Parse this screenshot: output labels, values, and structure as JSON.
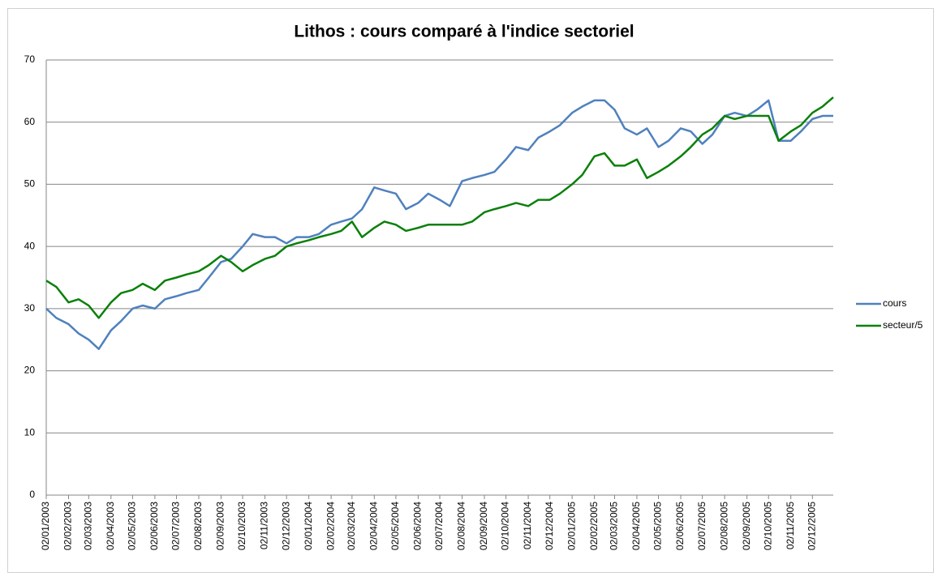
{
  "chart_data": {
    "type": "line",
    "title": "Lithos : cours comparé à l'indice sectoriel",
    "x": [
      "02/01/2003",
      "16/01/2003",
      "02/02/2003",
      "16/02/2003",
      "02/03/2003",
      "16/03/2003",
      "02/04/2003",
      "16/04/2003",
      "02/05/2003",
      "16/05/2003",
      "02/06/2003",
      "16/06/2003",
      "02/07/2003",
      "16/07/2003",
      "02/08/2003",
      "16/08/2003",
      "02/09/2003",
      "16/09/2003",
      "02/10/2003",
      "16/10/2003",
      "02/11/2003",
      "16/11/2003",
      "02/12/2003",
      "16/12/2003",
      "02/01/2004",
      "16/01/2004",
      "02/02/2004",
      "16/02/2004",
      "02/03/2004",
      "16/03/2004",
      "02/04/2004",
      "16/04/2004",
      "02/05/2004",
      "16/05/2004",
      "02/06/2004",
      "16/06/2004",
      "02/07/2004",
      "16/07/2004",
      "02/08/2004",
      "16/08/2004",
      "02/09/2004",
      "16/09/2004",
      "02/10/2004",
      "16/10/2004",
      "02/11/2004",
      "16/11/2004",
      "02/12/2004",
      "16/12/2004",
      "02/01/2005",
      "16/01/2005",
      "02/02/2005",
      "16/02/2005",
      "02/03/2005",
      "16/03/2005",
      "02/04/2005",
      "16/04/2005",
      "02/05/2005",
      "16/05/2005",
      "02/06/2005",
      "16/06/2005",
      "02/07/2005",
      "16/07/2005",
      "02/08/2005",
      "16/08/2005",
      "02/09/2005",
      "16/09/2005",
      "02/10/2005",
      "16/10/2005",
      "02/11/2005",
      "16/11/2005",
      "02/12/2005",
      "16/12/2005",
      "31/12/2005"
    ],
    "series": [
      {
        "name": "cours",
        "color": "#4f81bd",
        "values": [
          30,
          28.5,
          27.5,
          26,
          25,
          23.5,
          26.5,
          28,
          30,
          30.5,
          30,
          31.5,
          32,
          32.5,
          33,
          35,
          37.5,
          38,
          40,
          42,
          41.5,
          41.5,
          40.5,
          41.5,
          41.5,
          42,
          43.5,
          44,
          44.5,
          46,
          49.5,
          49,
          48.5,
          46,
          47,
          48.5,
          47.5,
          46.5,
          50.5,
          51,
          51.5,
          52,
          54,
          56,
          55.5,
          57.5,
          58.5,
          59.5,
          61.5,
          62.5,
          63.5,
          63.5,
          62,
          59,
          58,
          59,
          56,
          57,
          59,
          58.5,
          56.5,
          58,
          61,
          61.5,
          61,
          62,
          63.5,
          57,
          57,
          58.5,
          60.5,
          61,
          61
        ]
      },
      {
        "name": "secteur/5",
        "color": "#0a800a",
        "values": [
          34.5,
          33.5,
          31,
          31.5,
          30.5,
          28.5,
          31,
          32.5,
          33,
          34,
          33,
          34.5,
          35,
          35.5,
          36,
          37,
          38.5,
          37.5,
          36,
          37,
          38,
          38.5,
          40,
          40.5,
          41,
          41.5,
          42,
          42.5,
          44,
          41.5,
          43,
          44,
          43.5,
          42.5,
          43,
          43.5,
          43.5,
          43.5,
          43.5,
          44,
          45.5,
          46,
          46.5,
          47,
          46.5,
          47.5,
          47.5,
          48.5,
          50,
          51.5,
          54.5,
          55,
          53,
          53,
          54,
          51,
          52,
          53,
          54.5,
          56,
          58,
          59,
          61,
          60.5,
          61,
          61,
          61,
          57,
          58.5,
          59.5,
          61.5,
          62.5,
          64
        ]
      }
    ],
    "xlim": [
      "02/01/2003",
      "31/12/2005"
    ],
    "xticks": [
      "02/01/2003",
      "02/02/2003",
      "02/03/2003",
      "02/04/2003",
      "02/05/2003",
      "02/06/2003",
      "02/07/2003",
      "02/08/2003",
      "02/09/2003",
      "02/10/2003",
      "02/11/2003",
      "02/12/2003",
      "02/01/2004",
      "02/02/2004",
      "02/03/2004",
      "02/04/2004",
      "02/05/2004",
      "02/06/2004",
      "02/07/2004",
      "02/08/2004",
      "02/09/2004",
      "02/10/2004",
      "02/11/2004",
      "02/12/2004",
      "02/01/2005",
      "02/02/2005",
      "02/03/2005",
      "02/04/2005",
      "02/05/2005",
      "02/06/2005",
      "02/07/2005",
      "02/08/2005",
      "02/09/2005",
      "02/10/2005",
      "02/11/2005",
      "02/12/2005"
    ],
    "ylim": [
      0,
      70
    ],
    "yticks": [
      0,
      10,
      20,
      30,
      40,
      50,
      60,
      70
    ],
    "grid": true,
    "legend": "right"
  }
}
